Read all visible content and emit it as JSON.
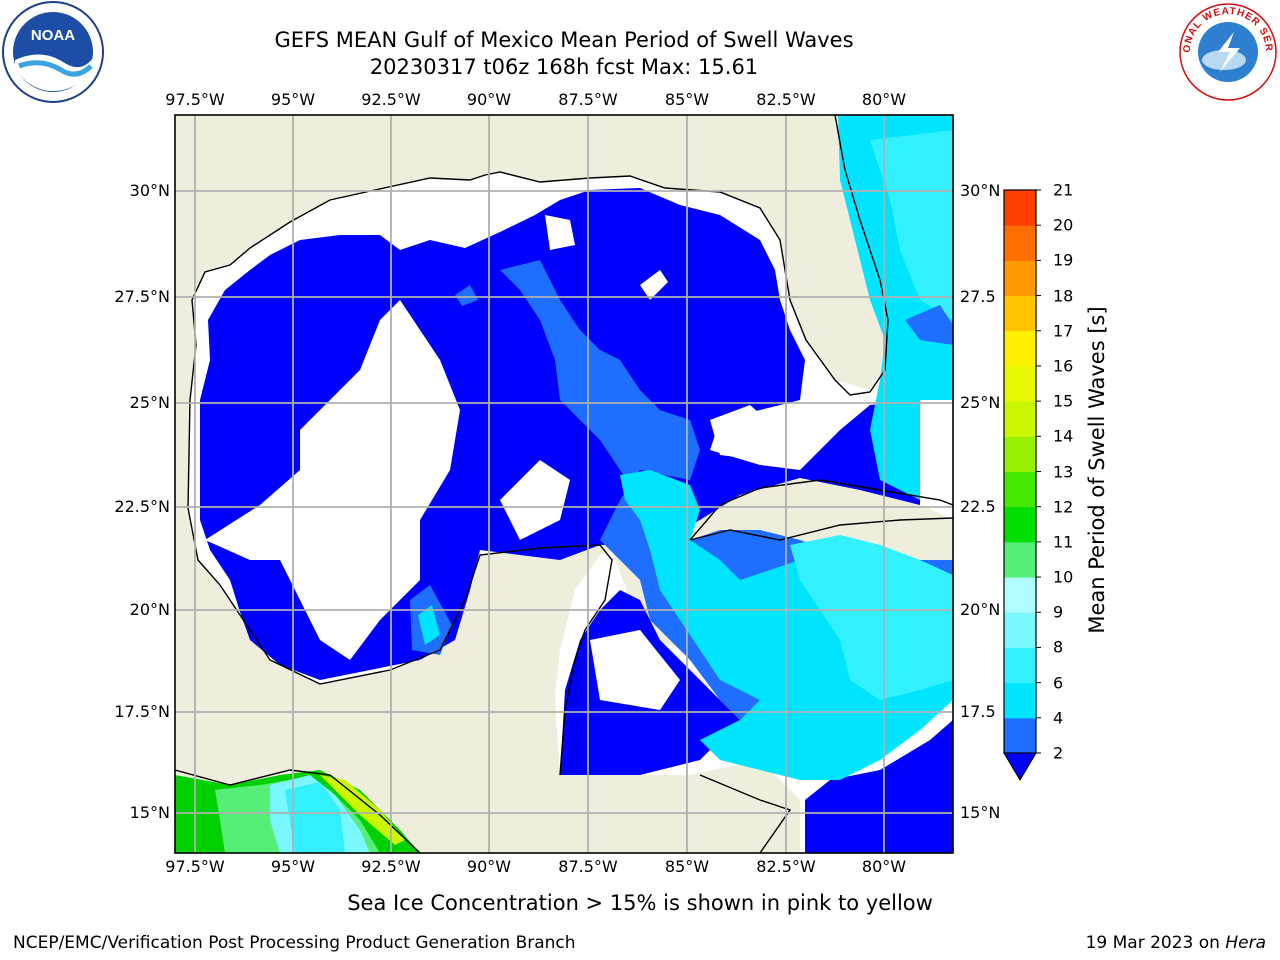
{
  "header": {
    "title_line1": "GEFS MEAN Gulf of Mexico Mean Period of Swell Waves",
    "title_line2": "20230317 t06z 168h fcst   Max: 15.61"
  },
  "logos": {
    "left": "NOAA",
    "right": "NATIONAL WEATHER SERVICE"
  },
  "axes": {
    "lon_labels": [
      "97.5°W",
      "95°W",
      "92.5°W",
      "90°W",
      "87.5°W",
      "85°W",
      "82.5°W",
      "80°W"
    ],
    "lat_labels": [
      "30°N",
      "27.5°N",
      "25°N",
      "22.5°N",
      "20°N",
      "17.5°N",
      "15°N"
    ],
    "lat_labels_right": [
      "30°N",
      "27.5",
      "25°N",
      "22.5",
      "20°N",
      "17.5",
      "15°N"
    ]
  },
  "colorbar": {
    "label": "Mean Period of Swell Waves [s]",
    "ticks": [
      "2",
      "4",
      "6",
      "8",
      "9",
      "10",
      "11",
      "12",
      "13",
      "14",
      "15",
      "16",
      "17",
      "18",
      "19",
      "20",
      "21"
    ],
    "colors": [
      "#1e6fff",
      "#00e5ff",
      "#33f0ff",
      "#7af7ff",
      "#aefcff",
      "#55ef77",
      "#00e000",
      "#44e800",
      "#99ef00",
      "#c9f600",
      "#e8f800",
      "#fff200",
      "#ffc400",
      "#ff9a00",
      "#ff6f00",
      "#ff3f00",
      "#ff0000"
    ],
    "under_color": "#0000ff"
  },
  "map": {
    "land_color": "#efeedd",
    "deep_water_color": "#0000ff"
  },
  "footer": {
    "note": "Sea Ice Concentration > 15% is shown in pink to yellow",
    "credit_left": "NCEP/EMC/Verification Post Processing Product Generation Branch",
    "credit_right_date": "19 Mar 2023 on",
    "credit_right_host": "Hera"
  }
}
